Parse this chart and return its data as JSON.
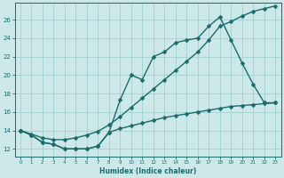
{
  "xlabel": "Humidex (Indice chaleur)",
  "xlim": [
    -0.5,
    23.5
  ],
  "ylim": [
    11.2,
    27.8
  ],
  "xticks": [
    0,
    1,
    2,
    3,
    4,
    5,
    6,
    7,
    8,
    9,
    10,
    11,
    12,
    13,
    14,
    15,
    16,
    17,
    18,
    19,
    20,
    21,
    22,
    23
  ],
  "yticks": [
    12,
    14,
    16,
    18,
    20,
    22,
    24,
    26
  ],
  "background_color": "#cce8e8",
  "grid_color": "#99cccc",
  "line_color": "#1a6b6b",
  "line_width": 1.0,
  "marker_size": 2.5,
  "line1_x": [
    0,
    1,
    2,
    3,
    4,
    5,
    6,
    7,
    8,
    9,
    10,
    11,
    12,
    13,
    14,
    15,
    16,
    17,
    18,
    19,
    20,
    21,
    22,
    23
  ],
  "line1_y": [
    14.0,
    13.6,
    13.2,
    13.0,
    13.0,
    13.2,
    13.5,
    13.9,
    14.6,
    15.5,
    16.5,
    17.5,
    18.5,
    19.5,
    20.5,
    21.5,
    22.5,
    23.8,
    25.3,
    25.8,
    26.4,
    26.9,
    27.2,
    27.5
  ],
  "line2_x": [
    0,
    1,
    2,
    3,
    4,
    5,
    6,
    7,
    8,
    9,
    10,
    11,
    12,
    13,
    14,
    15,
    16,
    17,
    18,
    19,
    20,
    21,
    22,
    23
  ],
  "line2_y": [
    14.0,
    13.5,
    12.7,
    12.5,
    12.0,
    12.0,
    12.0,
    12.3,
    13.8,
    17.3,
    20.0,
    19.5,
    22.0,
    22.5,
    23.5,
    23.8,
    24.0,
    25.3,
    26.3,
    23.8,
    21.3,
    19.0,
    17.0,
    17.0
  ],
  "line3_x": [
    0,
    1,
    2,
    3,
    4,
    5,
    6,
    7,
    8,
    9,
    10,
    11,
    12,
    13,
    14,
    15,
    16,
    17,
    18,
    19,
    20,
    21,
    22,
    23
  ],
  "line3_y": [
    14.0,
    13.5,
    12.7,
    12.5,
    12.0,
    12.0,
    12.0,
    12.3,
    13.8,
    14.2,
    14.5,
    14.8,
    15.1,
    15.4,
    15.6,
    15.8,
    16.0,
    16.2,
    16.4,
    16.6,
    16.7,
    16.8,
    16.9,
    17.0
  ]
}
